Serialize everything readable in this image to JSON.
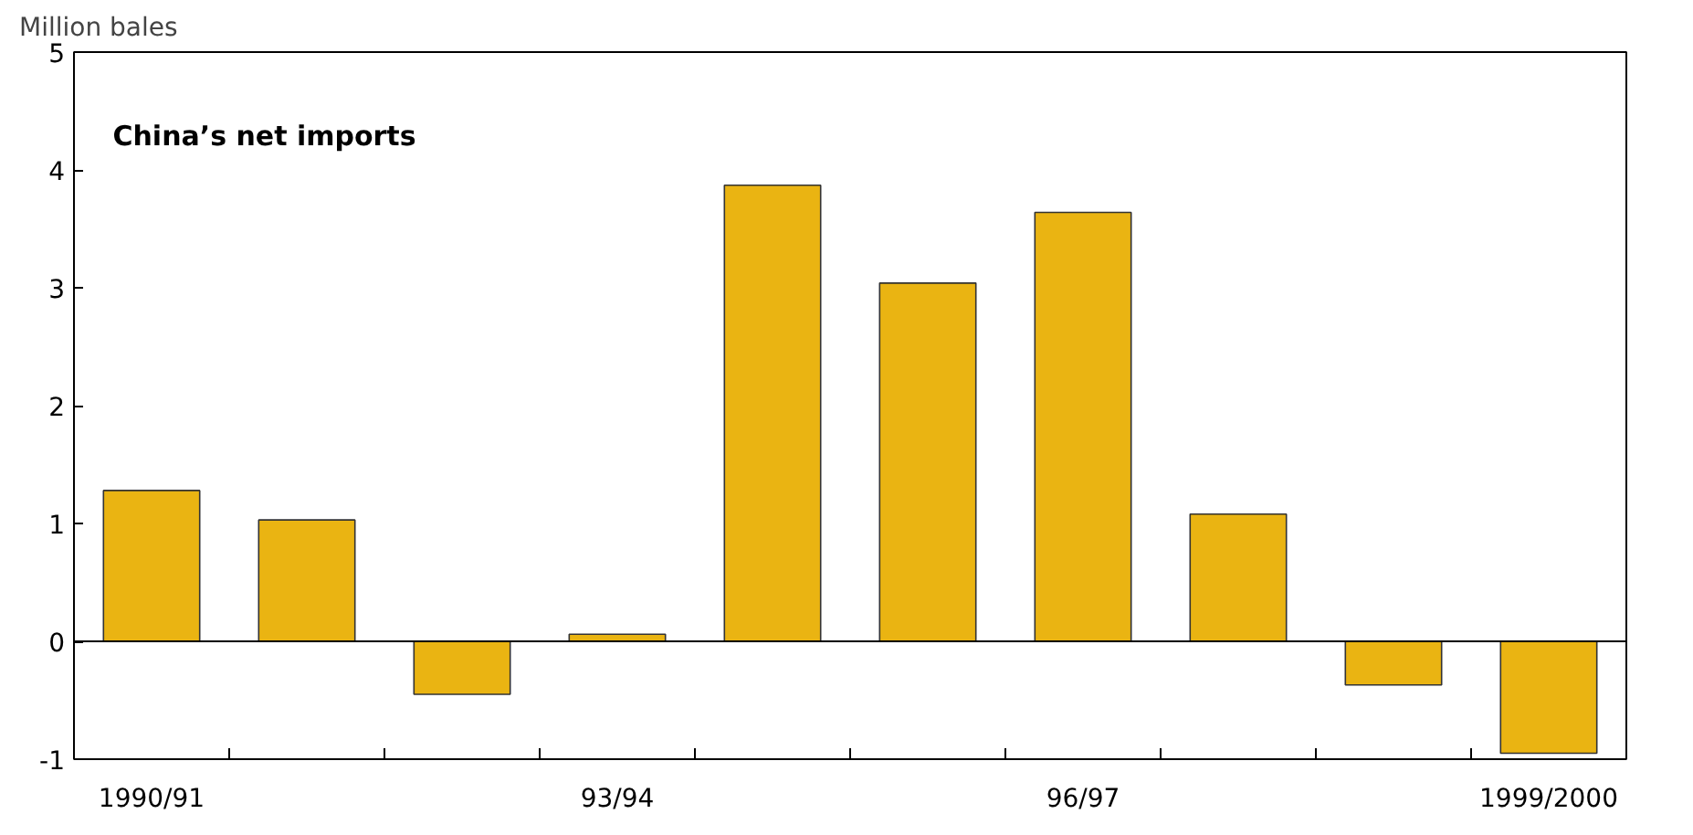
{
  "chart_data": {
    "type": "bar",
    "title": "China’s net imports",
    "ylabel": "Million bales",
    "categories": [
      "1990/91",
      null,
      null,
      "93/94",
      null,
      null,
      "96/97",
      null,
      null,
      "1999/2000"
    ],
    "values": [
      1.28,
      1.03,
      -0.45,
      0.06,
      3.87,
      3.04,
      3.64,
      1.08,
      -0.37,
      -0.95
    ],
    "color": "#eab412",
    "ylim": [
      -1,
      5
    ],
    "yticks": [
      {
        "value": -1,
        "label": "-1"
      },
      0,
      1,
      2,
      3,
      4,
      5
    ]
  }
}
